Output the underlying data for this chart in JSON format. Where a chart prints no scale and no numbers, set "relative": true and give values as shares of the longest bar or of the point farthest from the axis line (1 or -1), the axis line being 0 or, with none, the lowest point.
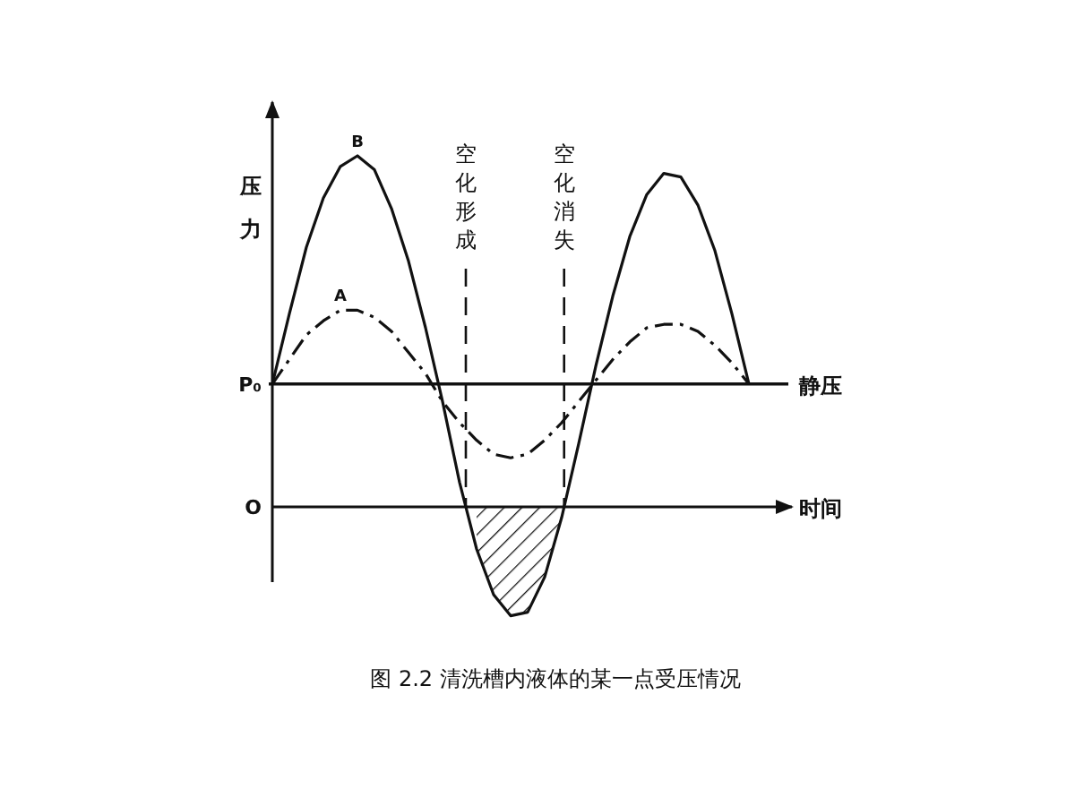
{
  "chart_data": {
    "type": "line",
    "relative": true,
    "ylabel": "压力",
    "xlabel": "时间",
    "annotations": [
      "空化形成",
      "空化消失",
      "图 2.2 清洗槽内液体的某一点受压情况",
      "P₀",
      "O"
    ],
    "categories": [
      null,
      null,
      null,
      null,
      null,
      null,
      null,
      null,
      null,
      null,
      null,
      null,
      null,
      null,
      null,
      null,
      null,
      null,
      null,
      null,
      null,
      null,
      null,
      null,
      null,
      null,
      null,
      null,
      null
    ],
    "series": [
      {
        "name": "B",
        "color": "#111111",
        "line_style": "solid",
        "values": [
          0.35,
          0.55,
          0.74,
          0.88,
          0.97,
          1,
          0.96,
          0.85,
          0.7,
          0.51,
          0.3,
          0.07,
          -0.12,
          -0.25,
          -0.31,
          -0.3,
          -0.2,
          -0.03,
          0.18,
          0.4,
          0.6,
          0.77,
          0.89,
          0.95,
          0.94,
          0.86,
          0.73,
          0.55,
          0.35
        ]
      },
      {
        "name": "A",
        "color": "#111111",
        "line_style": "dash-dot",
        "values": [
          0.35,
          0.42,
          0.49,
          0.53,
          0.56,
          0.56,
          0.54,
          0.5,
          0.44,
          0.38,
          0.3,
          0.24,
          0.19,
          0.15,
          0.14,
          0.15,
          0.19,
          0.24,
          0.3,
          0.36,
          0.42,
          0.47,
          0.51,
          0.52,
          0.52,
          0.5,
          0.46,
          0.41,
          0.35
        ]
      },
      {
        "type": "area",
        "color": "#111111",
        "values": [
          null,
          null,
          null,
          null,
          null,
          null,
          null,
          null,
          null,
          null,
          null,
          null,
          -0.12,
          -0.25,
          -0.31,
          -0.3,
          -0.2,
          -0.03,
          null,
          null,
          null,
          null,
          null,
          null,
          null,
          null,
          null,
          null,
          null
        ]
      }
    ],
    "ref_lines": [
      {
        "axis": "y",
        "value": 0.35,
        "label": "静压",
        "line_style": "solid"
      }
    ]
  }
}
